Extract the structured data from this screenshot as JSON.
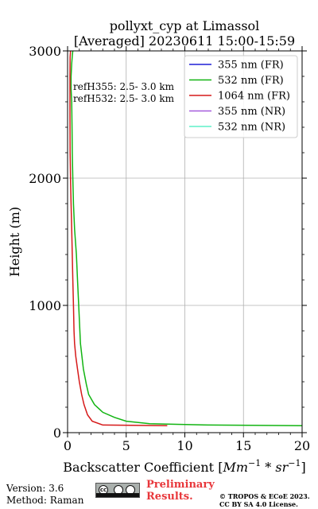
{
  "chart_data": {
    "type": "line",
    "title_line1": "pollyxt_cyp at Limassol",
    "title_line2": "[Averaged] 20230611 15:00-15:59",
    "xlabel_prefix": "Backscatter Coefficient [",
    "xlabel_unit": "Mm",
    "xlabel_exp1": "−1",
    "xlabel_mid": " * sr",
    "xlabel_exp2": "−1",
    "xlabel_suffix": "]",
    "ylabel": "Height (m)",
    "xlim": [
      0,
      20
    ],
    "ylim": [
      0,
      3000
    ],
    "xticks": [
      "0",
      "5",
      "10",
      "15",
      "20"
    ],
    "yticks": [
      "0",
      "1000",
      "2000",
      "3000"
    ],
    "xtick_values": [
      0,
      5,
      10,
      15,
      20
    ],
    "ytick_values": [
      0,
      1000,
      2000,
      3000
    ],
    "grid": true,
    "legend_position": "top-right",
    "annotations": [
      "refH355:  2.5- 3.0 km",
      "refH532:  2.5- 3.0 km"
    ],
    "series": [
      {
        "name": "355 nm (FR)",
        "color": "#1f1fd6",
        "x": [],
        "y": []
      },
      {
        "name": "532 nm (FR)",
        "color": "#12b412",
        "x": [
          20,
          12,
          7,
          5,
          4,
          3,
          2.3,
          1.8,
          1.6,
          1.35,
          1.1,
          0.95,
          0.85,
          0.75,
          0.6,
          0.5,
          0.45,
          0.4,
          0.38,
          0.35,
          0.3,
          0.3,
          0.35,
          0.4,
          0.45
        ],
        "y": [
          55,
          60,
          70,
          90,
          120,
          160,
          220,
          300,
          380,
          500,
          700,
          1000,
          1200,
          1400,
          1600,
          1800,
          2000,
          2200,
          2400,
          2600,
          2700,
          2800,
          2900,
          2960,
          3000
        ]
      },
      {
        "name": "1064 nm (FR)",
        "color": "#d61a1a",
        "x": [
          8.5,
          3,
          2.1,
          1.7,
          1.4,
          1.2,
          1.0,
          0.85,
          0.7,
          0.6,
          0.55,
          0.5,
          0.45,
          0.4,
          0.35,
          0.3,
          0.25,
          0.22,
          0.2,
          0.2,
          0.22,
          0.25
        ],
        "y": [
          55,
          60,
          90,
          140,
          220,
          300,
          400,
          500,
          600,
          700,
          800,
          1000,
          1200,
          1400,
          1600,
          1800,
          2000,
          2200,
          2500,
          2800,
          2950,
          3000
        ]
      },
      {
        "name": "355 nm (NR)",
        "color": "#a55bdc",
        "x": [],
        "y": []
      },
      {
        "name": "532 nm (NR)",
        "color": "#5ff0c8",
        "x": [],
        "y": []
      }
    ]
  },
  "footer": {
    "version": "Version: 3.6",
    "method": "Method: Raman",
    "preliminary_line1": "Preliminary",
    "preliminary_line2": "Results.",
    "copyright_line1": "© TROPOS & ECoE 2023.",
    "copyright_line2": "CC BY SA 4.0 License.",
    "cc_badge_text": "cc"
  }
}
